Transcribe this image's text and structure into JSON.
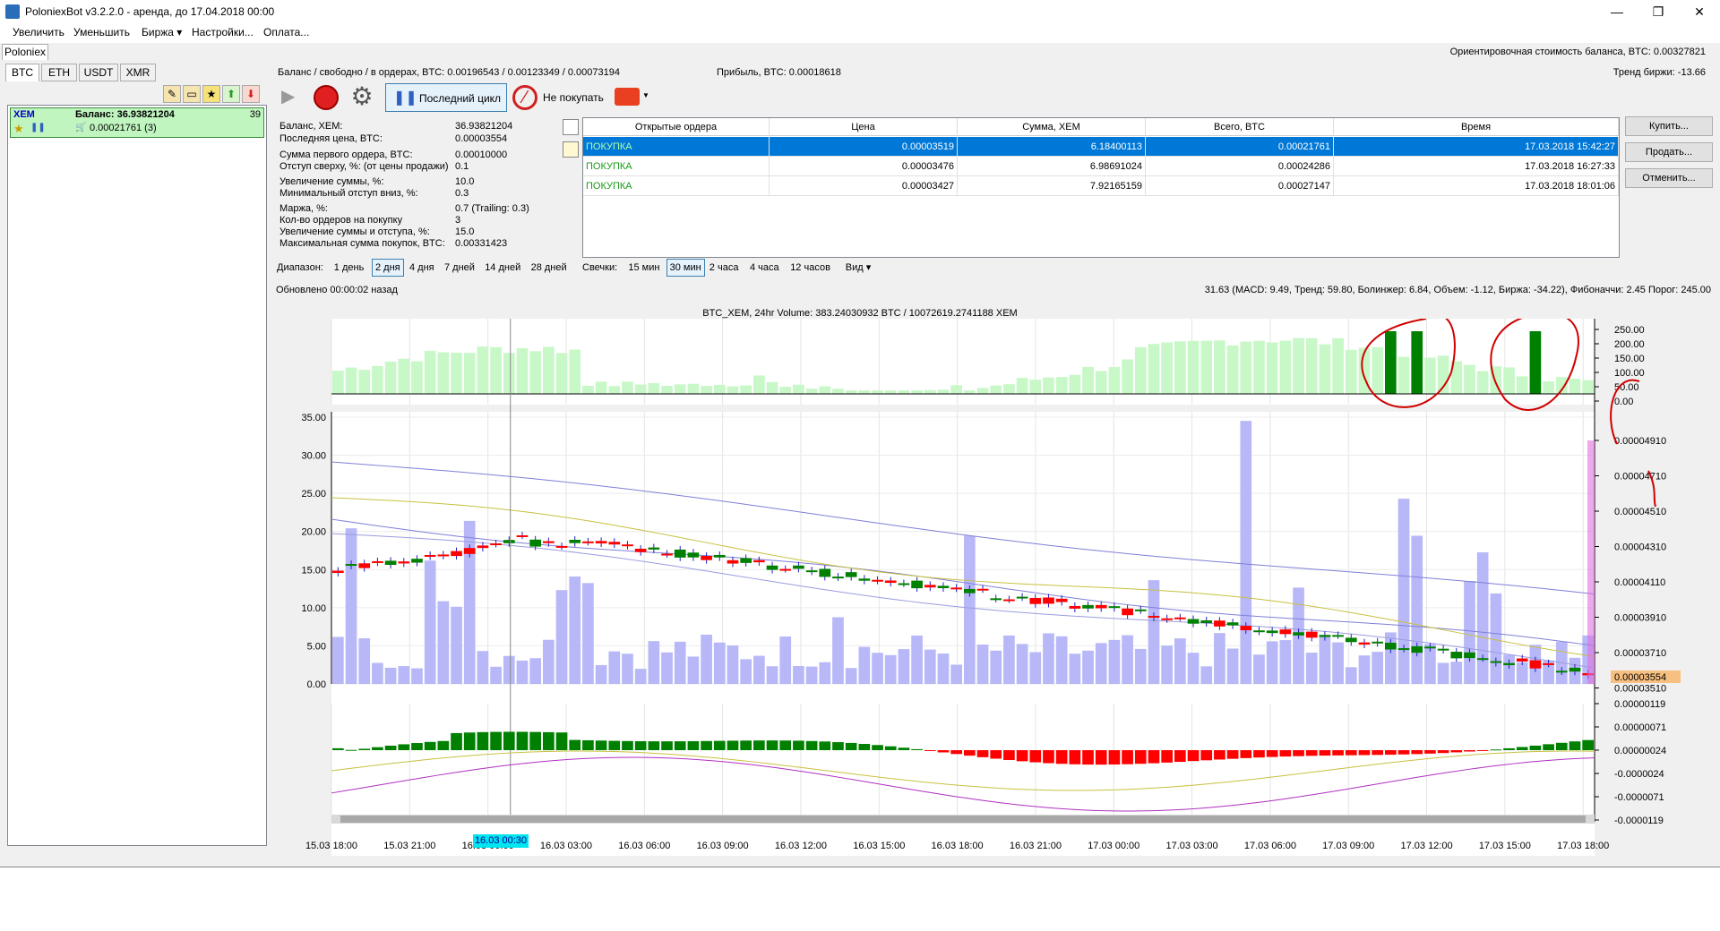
{
  "window": {
    "title": "PoloniexBot v3.2.2.0 - аренда, до 17.04.2018 00:00",
    "minimize": "—",
    "maximize": "❐",
    "close": "✕"
  },
  "menu": [
    "Увеличить",
    "Уменьшить",
    "Биржа ▾",
    "Настройки...",
    "Оплата..."
  ],
  "exchange_tab": "Poloniex",
  "header": {
    "balance": "Баланс / свободно / в ордерах, BTC: 0.00196543 / 0.00123349 / 0.00073194",
    "profit": "Прибыль, BTC: 0.00018618",
    "est_cost": "Ориентировочная стоимость баланса, BTC: 0.00327821",
    "trend": "Тренд биржи: -13.66"
  },
  "currency_tabs": [
    "BTC",
    "ETH",
    "USDT",
    "XMR"
  ],
  "coin": {
    "symbol": "XEM",
    "balance_label": "Баланс: 36.93821204",
    "count": "39",
    "order_sum": "0.00021761 (3)"
  },
  "toolbar": {
    "last_cycle": "Последний цикл",
    "dont_buy": "Не покупать"
  },
  "info": [
    {
      "l": "Баланс, XEM:",
      "v": "36.93821204"
    },
    {
      "l": "Последняя цена, BTC:",
      "v": "0.00003554"
    },
    {
      "l": "Сумма первого ордера, BTC:",
      "v": "0.00010000"
    },
    {
      "l": "Отступ сверху, %: (от цены продажи)",
      "v": "0.1"
    },
    {
      "l": "Увеличение суммы, %:",
      "v": "10.0"
    },
    {
      "l": "Минимальный отступ вниз, %:",
      "v": "0.3"
    },
    {
      "l": "Маржа, %:",
      "v": "0.7 (Trailing: 0.3)"
    },
    {
      "l": "Кол-во ордеров на покупку",
      "v": "3"
    },
    {
      "l": "Увеличение суммы и отступа, %:",
      "v": "15.0"
    },
    {
      "l": "Максимальная сумма покупок, BTC:",
      "v": "0.00331423"
    }
  ],
  "orders": {
    "headers": [
      "Открытые ордера",
      "Цена",
      "Сумма, XEM",
      "Всего, BTC",
      "Время"
    ],
    "rows": [
      [
        "ПОКУПКА",
        "0.00003519",
        "6.18400113",
        "0.00021761",
        "17.03.2018 15:42:27"
      ],
      [
        "ПОКУПКА",
        "0.00003476",
        "6.98691024",
        "0.00024286",
        "17.03.2018 16:27:33"
      ],
      [
        "ПОКУПКА",
        "0.00003427",
        "7.92165159",
        "0.00027147",
        "17.03.2018 18:01:06"
      ]
    ]
  },
  "side_buttons": [
    "Купить...",
    "Продать...",
    "Отменить..."
  ],
  "range": {
    "label": "Диапазон:",
    "options": [
      "1 день",
      "2 дня",
      "4 дня",
      "7 дней",
      "14 дней",
      "28 дней"
    ],
    "active": "2 дня"
  },
  "candles": {
    "label": "Свечки:",
    "options": [
      "15 мин",
      "30 мин",
      "2 часа",
      "4 часа",
      "12 часов"
    ],
    "active": "30 мин"
  },
  "view_label": "Вид ▾",
  "updated": "Обновлено 00:00:02 назад",
  "indicators": "31.63 (MACD: 9.49, Тренд: 59.80, Болинжер: 6.84, Объем: -1.12, Биржа: -34.22), Фибоначчи: 2.45 Порог: 245.00",
  "chart_title": "BTC_XEM, 24hr Volume: 383.24030932 BTC / 10072619.2741188 XEM",
  "chart_data": {
    "type": "candlestick",
    "top_axis_ticks": [
      "250.00",
      "200.00",
      "150.00",
      "100.00",
      "50.00",
      "0.00"
    ],
    "volume_axis_ticks": [
      "35.00",
      "30.00",
      "25.00",
      "20.00",
      "15.00",
      "10.00",
      "5.00",
      "0.00"
    ],
    "price_axis_ticks": [
      "0.00004910",
      "0.00004710",
      "0.00004510",
      "0.00004310",
      "0.00004110",
      "0.00003910",
      "0.00003710",
      "0.00003510"
    ],
    "last_price": "0.00003554",
    "macd_axis_ticks": [
      "0.00000119",
      "0.00000071",
      "0.00000024",
      "-0.0000024",
      "-0.0000071",
      "-0.0000119"
    ],
    "x_ticks": [
      "15.03 18:00",
      "15.03 21:00",
      "16.03 00:00",
      "16.03 03:00",
      "16.03 06:00",
      "16.03 09:00",
      "16.03 12:00",
      "16.03 15:00",
      "16.03 18:00",
      "16.03 21:00",
      "17.03 00:00",
      "17.03 03:00",
      "17.03 06:00",
      "17.03 09:00",
      "17.03 12:00",
      "17.03 15:00",
      "17.03 18:00"
    ],
    "cursor_time": "16.03 00:30",
    "colors": {
      "up": "#008000",
      "down": "#ff0000",
      "volume": "#b8b8f8",
      "top_bars": "#c8f8c8",
      "annot": "#d00000"
    }
  }
}
